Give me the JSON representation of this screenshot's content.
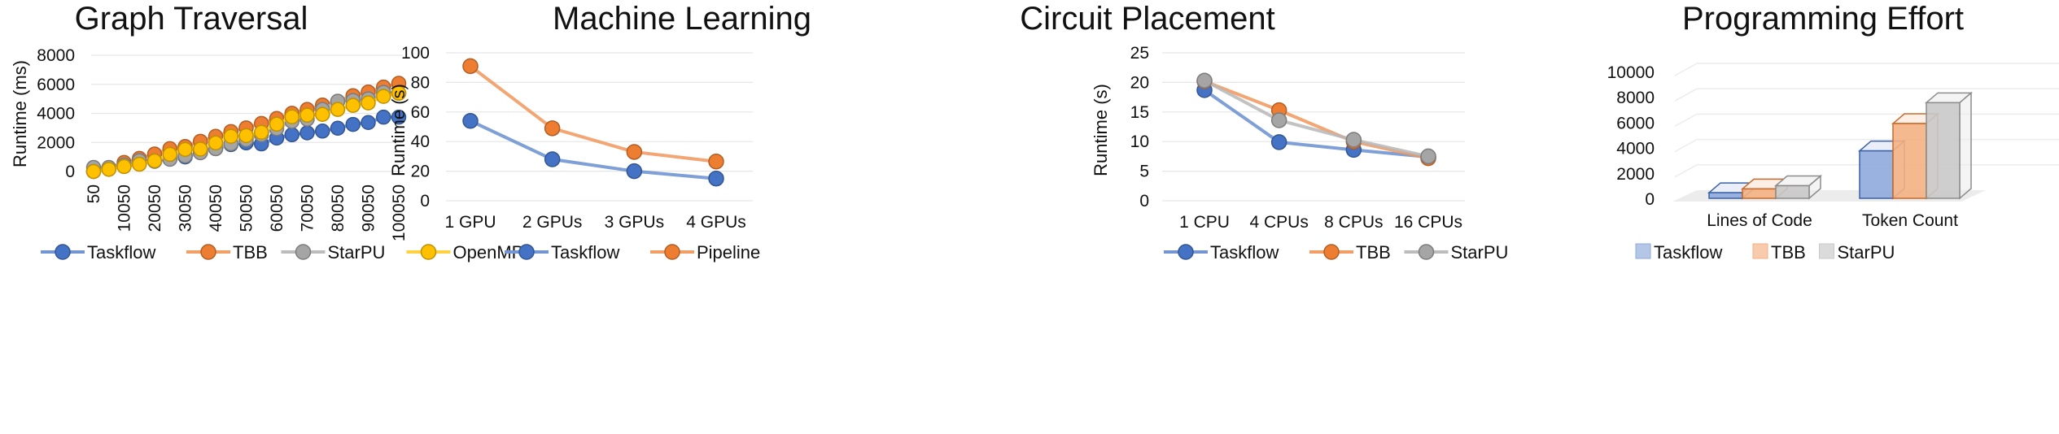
{
  "chart_data": [
    {
      "type": "line",
      "title": "Graph Traversal",
      "xlabel": "",
      "ylabel": "Runtime (ms)",
      "ylim": [
        0,
        8000
      ],
      "yticks": [
        "0",
        "2000",
        "4000",
        "6000",
        "8000"
      ],
      "x": [
        50,
        5050,
        10050,
        15050,
        20050,
        25050,
        30050,
        35050,
        40050,
        45050,
        50050,
        55050,
        60050,
        65050,
        70050,
        75050,
        80050,
        85050,
        90050,
        95050,
        100050
      ],
      "xtick_labels": [
        "50",
        "10050",
        "20050",
        "30050",
        "40050",
        "50050",
        "60050",
        "70050",
        "80050",
        "90050",
        "100050"
      ],
      "grid": true,
      "legend": "bottom",
      "series": [
        {
          "name": "Taskflow",
          "color": "#4472C4",
          "values": [
            0,
            200,
            400,
            600,
            700,
            850,
            1000,
            1300,
            1570,
            1850,
            1970,
            1900,
            2300,
            2530,
            2660,
            2780,
            2980,
            3240,
            3370,
            3740,
            3740
          ]
        },
        {
          "name": "TBB",
          "color": "#ED7D31",
          "values": [
            0,
            250,
            620,
            900,
            1200,
            1570,
            1720,
            2080,
            2420,
            2750,
            3000,
            3310,
            3650,
            4010,
            4270,
            4570,
            4830,
            5220,
            5470,
            5810,
            6070
          ]
        },
        {
          "name": "StarPU",
          "color": "#A5A5A5",
          "values": [
            280,
            280,
            450,
            750,
            730,
            840,
            1070,
            1290,
            1570,
            1910,
            2190,
            2530,
            2950,
            3450,
            3600,
            4270,
            4830,
            4890,
            5000,
            5450,
            5390
          ]
        },
        {
          "name": "OpenMP",
          "color": "#FFC000",
          "values": [
            0,
            150,
            340,
            500,
            730,
            1180,
            1520,
            1540,
            1970,
            2420,
            2470,
            2700,
            3260,
            3760,
            3880,
            3930,
            4270,
            4550,
            4720,
            5170,
            5390
          ]
        }
      ]
    },
    {
      "type": "line",
      "title": "Machine Learning",
      "xlabel": "",
      "ylabel": "Runtime (s)",
      "ylim": [
        0,
        100
      ],
      "yticks": [
        "0",
        "20",
        "40",
        "60",
        "80",
        "100"
      ],
      "categories": [
        "1 GPU",
        "2 GPUs",
        "3 GPUs",
        "4 GPUs"
      ],
      "grid": true,
      "legend": "bottom",
      "series": [
        {
          "name": "Taskflow",
          "color": "#4472C4",
          "values": [
            54,
            28,
            20,
            15
          ]
        },
        {
          "name": "Pipeline",
          "color": "#ED7D31",
          "values": [
            91,
            49,
            33,
            26.5
          ]
        }
      ]
    },
    {
      "type": "line",
      "title": "Circuit Placement",
      "xlabel": "",
      "ylabel": "Runtime (s)",
      "ylim": [
        0,
        25
      ],
      "yticks": [
        "0",
        "5",
        "10",
        "15",
        "20",
        "25"
      ],
      "categories": [
        "1 CPU",
        "4 CPUs",
        "8 CPUs",
        "16 CPUs"
      ],
      "grid": true,
      "legend": "bottom",
      "series": [
        {
          "name": "Taskflow",
          "color": "#4472C4",
          "values": [
            18.7,
            9.9,
            8.6,
            7.4
          ]
        },
        {
          "name": "TBB",
          "color": "#ED7D31",
          "values": [
            20.2,
            15.3,
            10.0,
            7.2
          ]
        },
        {
          "name": "StarPU",
          "color": "#A5A5A5",
          "values": [
            20.3,
            13.6,
            10.3,
            7.5
          ]
        }
      ]
    },
    {
      "type": "bar",
      "subtype": "3d-clustered-column",
      "title": "Programming Effort",
      "xlabel": "",
      "ylabel": "",
      "ylim": [
        0,
        10000
      ],
      "yticks": [
        "0",
        "2000",
        "4000",
        "6000",
        "8000",
        "10000"
      ],
      "categories": [
        "Lines of Code",
        "Token Count"
      ],
      "grid": true,
      "legend": "bottom",
      "series": [
        {
          "name": "Taskflow",
          "color": "#4472C4",
          "values": [
            700,
            4000
          ]
        },
        {
          "name": "TBB",
          "color": "#ED7D31",
          "values": [
            1000,
            6150
          ]
        },
        {
          "name": "StarPU",
          "color": "#A5A5A5",
          "values": [
            1250,
            7800
          ]
        }
      ]
    }
  ]
}
